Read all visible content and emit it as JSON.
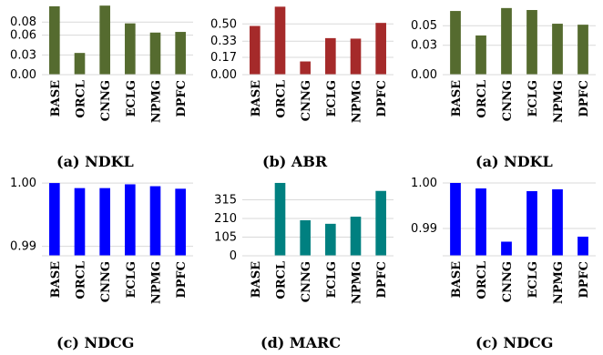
{
  "chart_data": [
    {
      "type": "bar",
      "caption": "(a) NDKL",
      "categories": [
        "BASE",
        "ORCL",
        "CNNG",
        "ECLG",
        "NPMG",
        "DPFC"
      ],
      "values": [
        0.104,
        0.033,
        0.105,
        0.078,
        0.064,
        0.065
      ],
      "yticks": [
        0.0,
        0.03,
        0.06,
        0.08
      ],
      "ytick_labels": [
        "0.00",
        "0.03",
        "0.06",
        "0.08"
      ],
      "ylim": [
        0,
        0.108
      ],
      "color": "#556b2f"
    },
    {
      "type": "bar",
      "caption": "(b) ABR",
      "categories": [
        "BASE",
        "ORCL",
        "CNNG",
        "ECLG",
        "NPMG",
        "DPFC"
      ],
      "values": [
        0.48,
        0.67,
        0.13,
        0.36,
        0.355,
        0.51
      ],
      "yticks": [
        0.0,
        0.17,
        0.33,
        0.5
      ],
      "ytick_labels": [
        "0.00",
        "0.17",
        "0.33",
        "0.50"
      ],
      "ylim": [
        0,
        0.7
      ],
      "color": "#a52a2a"
    },
    {
      "type": "bar",
      "caption": "(a) NDKL",
      "categories": [
        "BASE",
        "ORCL",
        "CNNG",
        "ECLG",
        "NPMG",
        "DPFC"
      ],
      "values": [
        0.065,
        0.04,
        0.068,
        0.066,
        0.052,
        0.051
      ],
      "yticks": [
        0.0,
        0.03,
        0.05
      ],
      "ytick_labels": [
        "0.00",
        "0.03",
        "0.05"
      ],
      "ylim": [
        0,
        0.0725
      ],
      "color": "#556b2f"
    },
    {
      "type": "bar",
      "caption": "(c) NDCG",
      "categories": [
        "BASE",
        "ORCL",
        "CNNG",
        "ECLG",
        "NPMG",
        "DPFC"
      ],
      "values": [
        1.0,
        0.9992,
        0.9992,
        0.9998,
        0.9995,
        0.9991
      ],
      "yticks": [
        0.99,
        1.0
      ],
      "ytick_labels": [
        "0.99",
        "1.00"
      ],
      "ylim": [
        0.9885,
        1.0003
      ],
      "color": "#0000ff"
    },
    {
      "type": "bar",
      "caption": "(d) MARC",
      "categories": [
        "BASE",
        "ORCL",
        "CNNG",
        "ECLG",
        "NPMG",
        "DPFC"
      ],
      "values": [
        0,
        410,
        200,
        180,
        220,
        365
      ],
      "yticks": [
        0,
        105,
        210,
        315
      ],
      "ytick_labels": [
        "0",
        "105",
        "210",
        "315"
      ],
      "ylim": [
        0,
        420
      ],
      "color": "#008080"
    },
    {
      "type": "bar",
      "caption": "(c) NDCG",
      "categories": [
        "BASE",
        "ORCL",
        "CNNG",
        "ECLG",
        "NPMG",
        "DPFC"
      ],
      "values": [
        1.0,
        0.9988,
        0.9871,
        0.9982,
        0.9986,
        0.9882
      ],
      "yticks": [
        0.99,
        1.0
      ],
      "ytick_labels": [
        "0.99",
        "1.00"
      ],
      "ylim": [
        0.984,
        1.0004
      ],
      "color": "#0000ff"
    }
  ]
}
